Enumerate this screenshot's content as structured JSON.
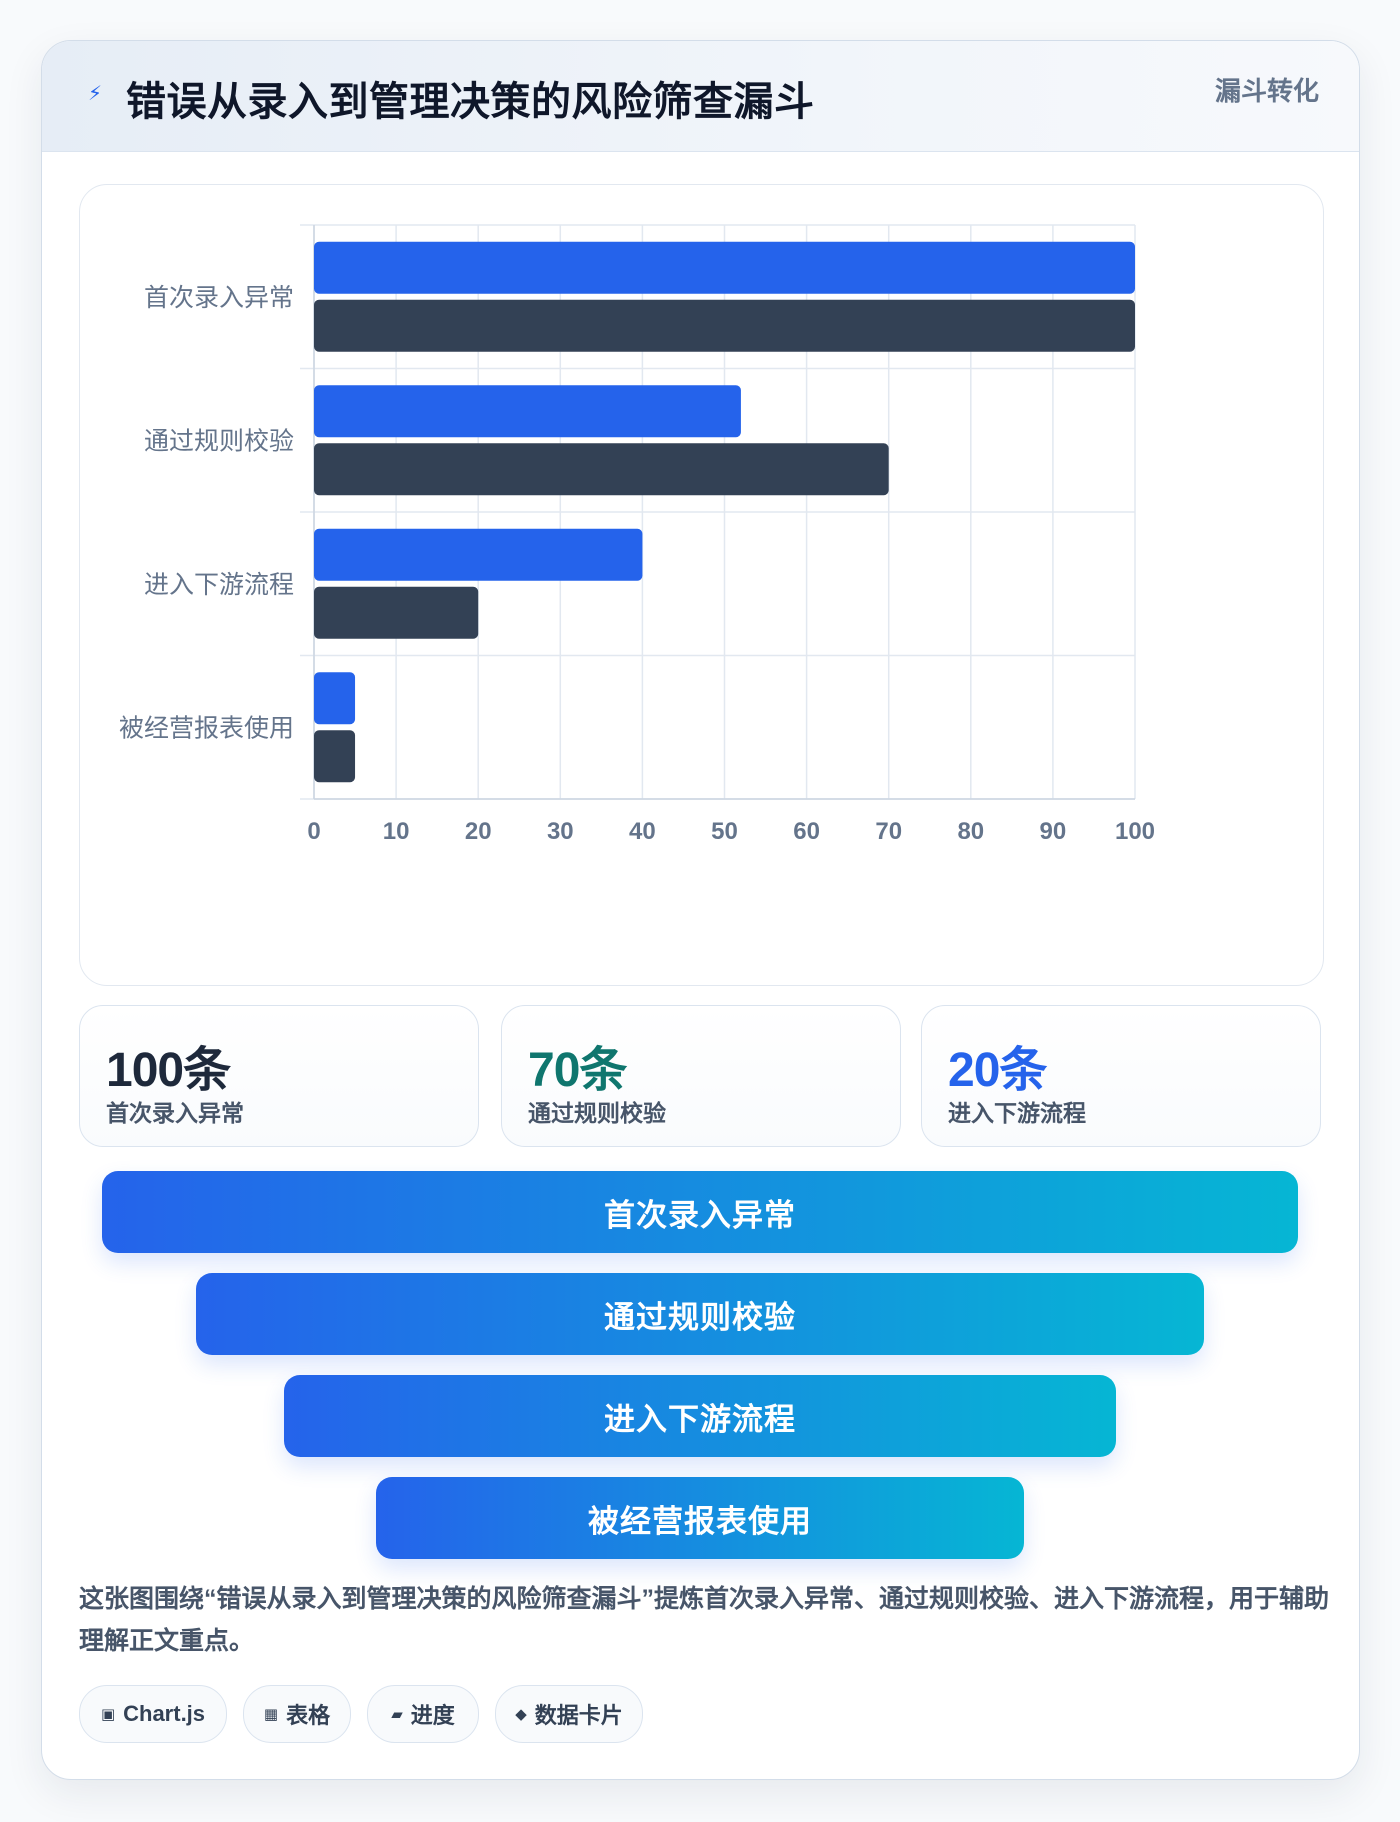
{
  "header": {
    "title": "错误从录入到管理决策的风险筛查漏斗",
    "type_label": "漏斗转化",
    "icon": "lightning-bolt-icon"
  },
  "chart_data": {
    "type": "bar",
    "orientation": "horizontal",
    "categories": [
      "首次录入异常",
      "通过规则校验",
      "进入下游流程",
      "被经营报表使用"
    ],
    "series": [
      {
        "values": [
          100,
          52,
          40,
          5
        ],
        "color": "#2563eb"
      },
      {
        "values": [
          100,
          70,
          20,
          5
        ],
        "color": "#334155"
      }
    ],
    "xlim": [
      0,
      100
    ],
    "xticks": [
      0,
      10,
      20,
      30,
      40,
      50,
      60,
      70,
      80,
      90,
      100
    ],
    "grid": true,
    "title": "",
    "xlabel": "",
    "ylabel": ""
  },
  "stats": [
    {
      "value": "100条",
      "label": "首次录入异常",
      "color": "#1e293b"
    },
    {
      "value": "70条",
      "label": "通过规则校验",
      "color": "#0f766e"
    },
    {
      "value": "20条",
      "label": "进入下游流程",
      "color": "#2563eb"
    }
  ],
  "funnel": [
    {
      "label": "首次录入异常"
    },
    {
      "label": "通过规则校验"
    },
    {
      "label": "进入下游流程"
    },
    {
      "label": "被经营报表使用"
    }
  ],
  "description": "这张图围绕“错误从录入到管理决策的风险筛查漏斗”提炼首次录入异常、通过规则校验、进入下游流程，用于辅助理解正文重点。",
  "tags": [
    {
      "icon": "▣",
      "label": "Chart.js"
    },
    {
      "icon": "▦",
      "label": "表格"
    },
    {
      "icon": "▰",
      "label": "进度"
    },
    {
      "icon": "◆",
      "label": "数据卡片"
    }
  ]
}
